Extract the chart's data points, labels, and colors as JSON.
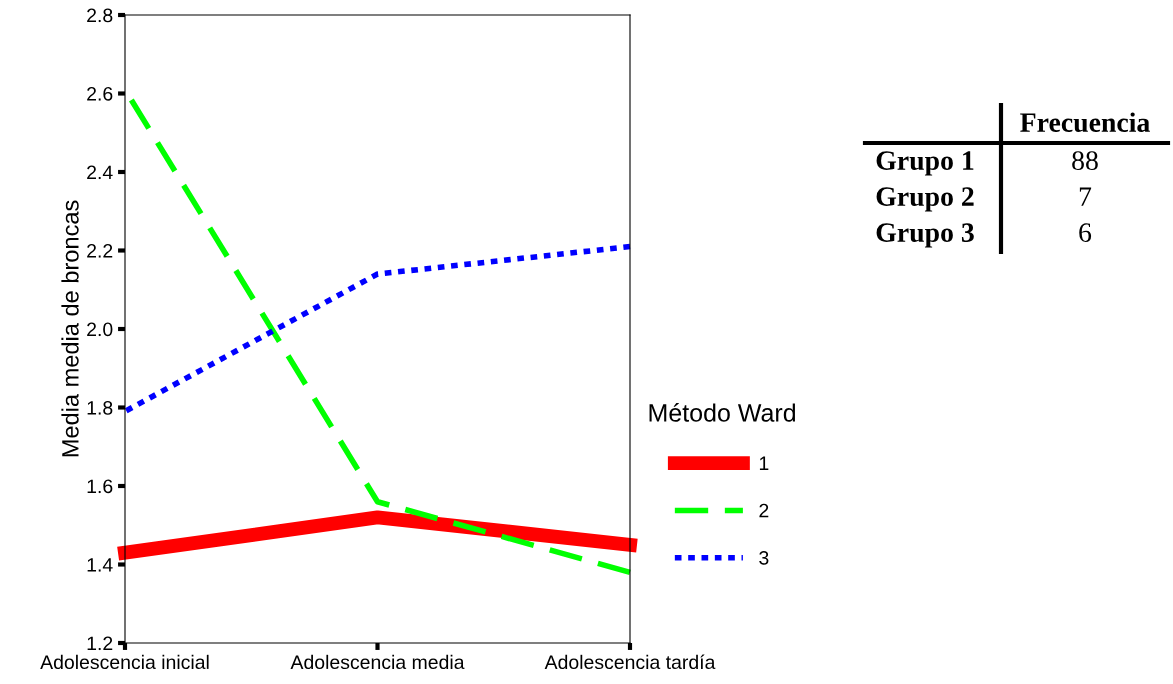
{
  "chart_data": {
    "type": "line",
    "ylabel": "Media media de broncas",
    "legend_title": "Método Ward",
    "categories": [
      "Adolescencia inicial",
      "Adolescencia media",
      "Adolescencia tardía"
    ],
    "series": [
      {
        "name": "1",
        "color": "#ff0000",
        "values": [
          1.43,
          1.52,
          1.45
        ],
        "line_style": "solid"
      },
      {
        "name": "2",
        "color": "#00ff00",
        "values": [
          2.61,
          1.56,
          1.38
        ],
        "line_style": "dashed"
      },
      {
        "name": "3",
        "color": "#0000ff",
        "values": [
          1.79,
          2.14,
          2.21
        ],
        "line_style": "dotted"
      }
    ],
    "ylim": [
      1.2,
      2.8
    ],
    "yticks": [
      {
        "value": 1.2,
        "label": "1.2"
      },
      {
        "value": 1.4,
        "label": "1.4"
      },
      {
        "value": 1.6,
        "label": "1.6"
      },
      {
        "value": 1.8,
        "label": "1.8"
      },
      {
        "value": 2.0,
        "label": "2.0"
      },
      {
        "value": 2.2,
        "label": "2.2"
      },
      {
        "value": 2.4,
        "label": "2.4"
      },
      {
        "value": 2.6,
        "label": "2.6"
      },
      {
        "value": 2.8,
        "label": "2.8"
      }
    ],
    "grid": false,
    "legend": "right",
    "marker": "none",
    "annotations": [
      "Frecuencia",
      "Grupo 1",
      "88",
      "Grupo 2",
      "7",
      "Grupo 3",
      "6"
    ]
  }
}
